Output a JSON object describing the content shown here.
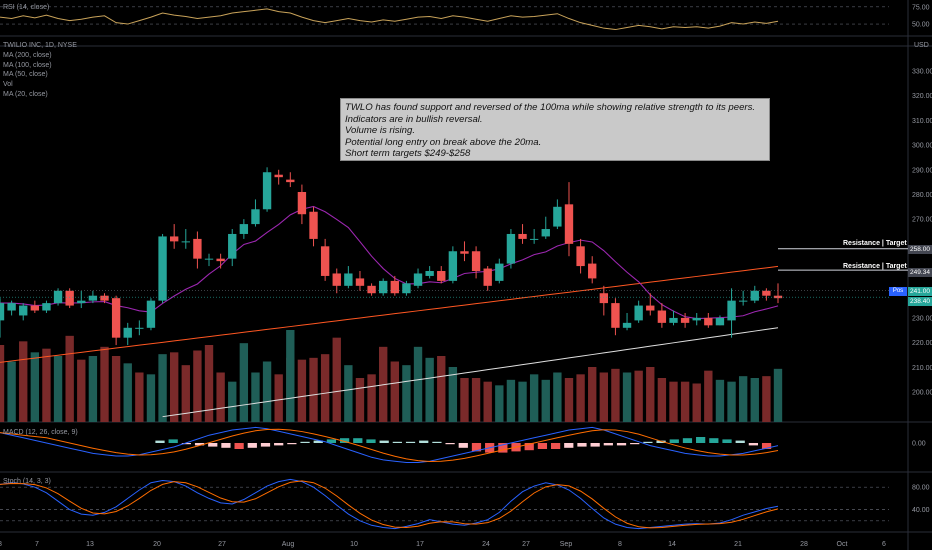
{
  "header": {
    "rsi_title": "RSI (14, close)",
    "symbol_title": "TWILIO INC, 1D, NYSE",
    "currency": "USD"
  },
  "legend": {
    "items": [
      "MA (200, close)",
      "MA (100, close)",
      "MA (50, close)",
      "Vol",
      "MA (20, close)"
    ]
  },
  "annotation": {
    "lines": [
      "TWLO has found support and reversed of the 100ma while showing relative strength to its peers.",
      "Indicators are in bullish reversal.",
      "Volume is rising.",
      "Potential long entry on break above the 20ma.",
      "Short term targets $249-$258"
    ]
  },
  "levels": [
    {
      "label": "Resistance | Target",
      "price": 258.0,
      "badge": "258.00"
    },
    {
      "label": "Resistance | Target",
      "price": 249.34,
      "badge": "249.34"
    }
  ],
  "last_price": {
    "pos_label": "Pos",
    "badge_top": "241.00",
    "badge_bottom": "238.40"
  },
  "panes": {
    "macd_title": "MACD (12, 26, close, 9)",
    "stoch_title": "Stoch (14, 3, 3)"
  },
  "colors": {
    "up": "#26a69a",
    "down": "#ef5350",
    "vol_up": "#1f5e57",
    "vol_down": "#7a2a2a",
    "ma20": "#9c27b0",
    "ma50": "#ff5722",
    "ma100": "#e0e0e0",
    "rsi": "#c9a35a",
    "macd": "#2962ff",
    "signal": "#ff6d00",
    "stoch_k": "#2962ff",
    "stoch_d": "#ff6d00",
    "badge_green": "#26a69a",
    "badge_grey": "#434651"
  },
  "chart_data": {
    "type": "candlestick",
    "x_labels": [
      "8",
      "7",
      "13",
      "20",
      "27",
      "Aug",
      "10",
      "17",
      "24",
      "27",
      "Sep",
      "8",
      "14",
      "21",
      "28",
      "Oct",
      "6"
    ],
    "price_ticks": [
      200,
      210,
      220,
      230,
      240,
      250,
      260,
      270,
      280,
      290,
      300,
      310,
      320,
      330
    ],
    "price_tick_labels": [
      "200.00",
      "210.00",
      "220.00",
      "230.00",
      "",
      "",
      "",
      "270.00",
      "280.00",
      "290.00",
      "300.00",
      "310.00",
      "320.00",
      "330.00"
    ],
    "ylim": [
      190,
      336
    ],
    "candles": [
      [
        229,
        236,
        222,
        238
      ],
      [
        233,
        236,
        231,
        237
      ],
      [
        231,
        235,
        229,
        236
      ],
      [
        235,
        233,
        232,
        237
      ],
      [
        233,
        236,
        232,
        237
      ],
      [
        236,
        241,
        235,
        242
      ],
      [
        241,
        235,
        234,
        242
      ],
      [
        236,
        237,
        234,
        241
      ],
      [
        237,
        239,
        236,
        241
      ],
      [
        239,
        237,
        236,
        240
      ],
      [
        238,
        222,
        219,
        239
      ],
      [
        222,
        226,
        219,
        228
      ],
      [
        226,
        226,
        223,
        229
      ],
      [
        226,
        237,
        225,
        238
      ],
      [
        237,
        263,
        236,
        264
      ],
      [
        263,
        261,
        258,
        268
      ],
      [
        261,
        261,
        258,
        266
      ],
      [
        262,
        254,
        250,
        265
      ],
      [
        254,
        254,
        251,
        256
      ],
      [
        254,
        253,
        250,
        256
      ],
      [
        254,
        264,
        251,
        266
      ],
      [
        264,
        268,
        262,
        270
      ],
      [
        268,
        274,
        267,
        278
      ],
      [
        274,
        289,
        273,
        291
      ],
      [
        288,
        287,
        284,
        290
      ],
      [
        286,
        285,
        283,
        289
      ],
      [
        281,
        272,
        268,
        284
      ],
      [
        273,
        262,
        259,
        275
      ],
      [
        259,
        247,
        245,
        262
      ],
      [
        248,
        243,
        240,
        250
      ],
      [
        243,
        248,
        242,
        251
      ],
      [
        246,
        243,
        241,
        249
      ],
      [
        243,
        240,
        239,
        244
      ],
      [
        240,
        245,
        239,
        246
      ],
      [
        245,
        240,
        239,
        247
      ],
      [
        240,
        244,
        239,
        245
      ],
      [
        243,
        248,
        242,
        250
      ],
      [
        247,
        249,
        246,
        251
      ],
      [
        249,
        245,
        244,
        251
      ],
      [
        245,
        257,
        244,
        259
      ],
      [
        257,
        256,
        253,
        261
      ],
      [
        257,
        249,
        246,
        259
      ],
      [
        250,
        243,
        241,
        251
      ],
      [
        245,
        252,
        244,
        254
      ],
      [
        252,
        264,
        250,
        266
      ],
      [
        264,
        262,
        260,
        268
      ],
      [
        262,
        262,
        260,
        266
      ],
      [
        263,
        266,
        262,
        271
      ],
      [
        267,
        275,
        266,
        278
      ],
      [
        276,
        260,
        255,
        285
      ],
      [
        259,
        251,
        248,
        262
      ],
      [
        252,
        246,
        244,
        255
      ],
      [
        240,
        236,
        231,
        243
      ],
      [
        236,
        226,
        223,
        238
      ],
      [
        226,
        228,
        225,
        232
      ],
      [
        229,
        235,
        228,
        237
      ],
      [
        235,
        233,
        231,
        240
      ],
      [
        233,
        228,
        226,
        236
      ],
      [
        228,
        230,
        227,
        233
      ],
      [
        230,
        228,
        226,
        232
      ],
      [
        229,
        230,
        227,
        232
      ],
      [
        230,
        227,
        226,
        232
      ],
      [
        227,
        230,
        227,
        231
      ],
      [
        229,
        237,
        222,
        242
      ],
      [
        237,
        237,
        235,
        241
      ],
      [
        237,
        241,
        236,
        243
      ],
      [
        241,
        239,
        237,
        242
      ],
      [
        239,
        238,
        236,
        244
      ]
    ],
    "volume_direction": [
      "d",
      "u",
      "d",
      "u",
      "d",
      "u",
      "d",
      "d",
      "u",
      "d",
      "d",
      "u",
      "d",
      "u",
      "u",
      "d",
      "d",
      "d",
      "d",
      "d",
      "u",
      "u",
      "u",
      "u",
      "d",
      "d",
      "d",
      "d",
      "d",
      "d",
      "u",
      "d",
      "d",
      "d",
      "d",
      "u",
      "u",
      "u",
      "d",
      "u",
      "d",
      "d",
      "d",
      "u",
      "u",
      "u",
      "u",
      "u",
      "u",
      "d",
      "d",
      "d",
      "d",
      "d",
      "u",
      "d",
      "d",
      "d",
      "d",
      "d",
      "d",
      "d",
      "u",
      "u",
      "u",
      "u",
      "d",
      "u"
    ],
    "volume_relative": [
      42,
      33,
      44,
      38,
      40,
      36,
      47,
      34,
      36,
      41,
      36,
      32,
      27,
      26,
      37,
      38,
      31,
      39,
      42,
      27,
      22,
      43,
      27,
      33,
      26,
      35,
      34,
      35,
      37,
      46,
      31,
      24,
      26,
      41,
      33,
      31,
      41,
      35,
      36,
      30,
      24,
      24,
      22,
      20,
      23,
      22,
      26,
      23,
      27,
      24,
      26,
      30,
      27,
      29,
      27,
      28,
      30,
      24,
      22,
      22,
      21,
      28,
      23,
      22,
      25,
      24,
      25,
      29
    ],
    "volume_ma20": [
      36,
      36,
      36,
      36,
      36,
      36,
      36,
      36,
      36,
      36,
      36,
      36,
      36,
      36,
      36,
      36,
      36,
      36,
      36,
      36,
      35,
      35,
      35,
      34,
      34,
      34,
      34,
      34,
      34,
      34,
      34,
      33,
      33,
      33,
      33,
      33,
      33,
      33,
      33,
      32,
      32,
      31,
      31,
      30,
      30,
      30,
      29,
      28,
      28,
      28,
      28,
      28,
      27,
      27,
      27,
      27,
      27,
      27,
      27,
      26,
      26,
      26,
      26,
      26,
      26,
      26,
      25,
      25
    ],
    "rsi": {
      "ticks": [
        50,
        75
      ],
      "tick_labels": [
        "50.00",
        "75.00"
      ],
      "ylim": [
        37,
        82
      ]
    },
    "macd": {
      "ticks": [
        0
      ],
      "tick_labels": [
        "0.00"
      ]
    },
    "stoch": {
      "ticks": [
        20,
        40,
        80
      ],
      "tick_labels": [
        "",
        "40.00",
        "80.00"
      ],
      "ylim": [
        0,
        100
      ]
    }
  }
}
